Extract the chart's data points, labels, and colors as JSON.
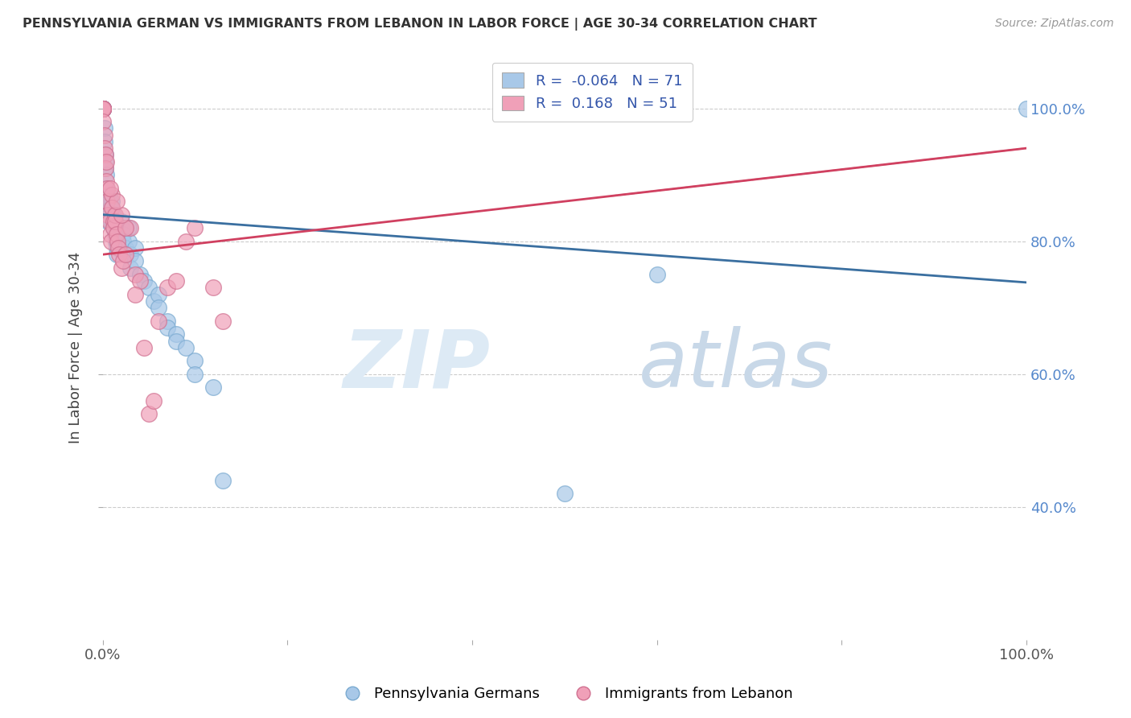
{
  "title": "PENNSYLVANIA GERMAN VS IMMIGRANTS FROM LEBANON IN LABOR FORCE | AGE 30-34 CORRELATION CHART",
  "source": "Source: ZipAtlas.com",
  "ylabel": "In Labor Force | Age 30-34",
  "watermark": "ZIPatlas",
  "blue_r": -0.064,
  "blue_n": 71,
  "pink_r": 0.168,
  "pink_n": 51,
  "blue_color": "#a8c8e8",
  "pink_color": "#f0a0b8",
  "blue_line_color": "#3a6fa0",
  "pink_line_color": "#d04060",
  "blue_scatter": [
    [
      0.0,
      1.0
    ],
    [
      0.0,
      1.0
    ],
    [
      0.0,
      1.0
    ],
    [
      0.0,
      1.0
    ],
    [
      0.0,
      1.0
    ],
    [
      0.0,
      1.0
    ],
    [
      0.0,
      1.0
    ],
    [
      0.0,
      1.0
    ],
    [
      0.0,
      1.0
    ],
    [
      0.0,
      1.0
    ],
    [
      0.0,
      1.0
    ],
    [
      0.002,
      0.97
    ],
    [
      0.002,
      0.95
    ],
    [
      0.003,
      0.93
    ],
    [
      0.003,
      0.92
    ],
    [
      0.003,
      0.91
    ],
    [
      0.004,
      0.9
    ],
    [
      0.004,
      0.88
    ],
    [
      0.005,
      0.87
    ],
    [
      0.005,
      0.86
    ],
    [
      0.005,
      0.85
    ],
    [
      0.006,
      0.84
    ],
    [
      0.006,
      0.83
    ],
    [
      0.007,
      0.87
    ],
    [
      0.007,
      0.86
    ],
    [
      0.008,
      0.85
    ],
    [
      0.008,
      0.84
    ],
    [
      0.009,
      0.83
    ],
    [
      0.01,
      0.86
    ],
    [
      0.01,
      0.85
    ],
    [
      0.012,
      0.84
    ],
    [
      0.012,
      0.82
    ],
    [
      0.013,
      0.83
    ],
    [
      0.013,
      0.81
    ],
    [
      0.014,
      0.8
    ],
    [
      0.015,
      0.79
    ],
    [
      0.015,
      0.78
    ],
    [
      0.016,
      0.82
    ],
    [
      0.016,
      0.81
    ],
    [
      0.017,
      0.8
    ],
    [
      0.018,
      0.79
    ],
    [
      0.02,
      0.83
    ],
    [
      0.02,
      0.82
    ],
    [
      0.022,
      0.81
    ],
    [
      0.022,
      0.8
    ],
    [
      0.025,
      0.79
    ],
    [
      0.025,
      0.78
    ],
    [
      0.028,
      0.82
    ],
    [
      0.028,
      0.8
    ],
    [
      0.03,
      0.78
    ],
    [
      0.03,
      0.76
    ],
    [
      0.035,
      0.79
    ],
    [
      0.035,
      0.77
    ],
    [
      0.04,
      0.75
    ],
    [
      0.045,
      0.74
    ],
    [
      0.05,
      0.73
    ],
    [
      0.055,
      0.71
    ],
    [
      0.06,
      0.72
    ],
    [
      0.06,
      0.7
    ],
    [
      0.07,
      0.68
    ],
    [
      0.07,
      0.67
    ],
    [
      0.08,
      0.66
    ],
    [
      0.08,
      0.65
    ],
    [
      0.09,
      0.64
    ],
    [
      0.1,
      0.62
    ],
    [
      0.1,
      0.6
    ],
    [
      0.12,
      0.58
    ],
    [
      0.13,
      0.44
    ],
    [
      0.5,
      0.42
    ],
    [
      0.6,
      0.75
    ],
    [
      1.0,
      1.0
    ]
  ],
  "pink_scatter": [
    [
      0.0,
      1.0
    ],
    [
      0.0,
      1.0
    ],
    [
      0.0,
      1.0
    ],
    [
      0.0,
      1.0
    ],
    [
      0.0,
      1.0
    ],
    [
      0.0,
      1.0
    ],
    [
      0.0,
      1.0
    ],
    [
      0.0,
      0.98
    ],
    [
      0.002,
      0.96
    ],
    [
      0.002,
      0.94
    ],
    [
      0.003,
      0.93
    ],
    [
      0.003,
      0.91
    ],
    [
      0.004,
      0.89
    ],
    [
      0.005,
      0.88
    ],
    [
      0.005,
      0.86
    ],
    [
      0.006,
      0.84
    ],
    [
      0.007,
      0.83
    ],
    [
      0.008,
      0.81
    ],
    [
      0.009,
      0.8
    ],
    [
      0.01,
      0.87
    ],
    [
      0.01,
      0.85
    ],
    [
      0.012,
      0.83
    ],
    [
      0.012,
      0.82
    ],
    [
      0.013,
      0.84
    ],
    [
      0.013,
      0.83
    ],
    [
      0.015,
      0.81
    ],
    [
      0.016,
      0.8
    ],
    [
      0.017,
      0.79
    ],
    [
      0.018,
      0.78
    ],
    [
      0.02,
      0.76
    ],
    [
      0.022,
      0.77
    ],
    [
      0.025,
      0.78
    ],
    [
      0.03,
      0.82
    ],
    [
      0.035,
      0.75
    ],
    [
      0.04,
      0.74
    ],
    [
      0.045,
      0.64
    ],
    [
      0.05,
      0.54
    ],
    [
      0.055,
      0.56
    ],
    [
      0.06,
      0.68
    ],
    [
      0.07,
      0.73
    ],
    [
      0.08,
      0.74
    ],
    [
      0.09,
      0.8
    ],
    [
      0.1,
      0.82
    ],
    [
      0.12,
      0.73
    ],
    [
      0.13,
      0.68
    ],
    [
      0.035,
      0.72
    ],
    [
      0.025,
      0.82
    ],
    [
      0.02,
      0.84
    ],
    [
      0.015,
      0.86
    ],
    [
      0.008,
      0.88
    ],
    [
      0.004,
      0.92
    ]
  ],
  "xlim": [
    0.0,
    1.0
  ],
  "ylim": [
    0.2,
    1.08
  ],
  "xticks": [
    0.0,
    0.2,
    0.4,
    0.6,
    0.8,
    1.0
  ],
  "xtick_labels": [
    "0.0%",
    "",
    "",
    "",
    "",
    "100.0%"
  ],
  "yticks": [
    0.4,
    0.6,
    0.8,
    1.0
  ],
  "ytick_labels": [
    "40.0%",
    "60.0%",
    "80.0%",
    "100.0%"
  ],
  "grid_color": "#cccccc",
  "bg_color": "#ffffff",
  "legend_blue_label": "Pennsylvania Germans",
  "legend_pink_label": "Immigrants from Lebanon"
}
